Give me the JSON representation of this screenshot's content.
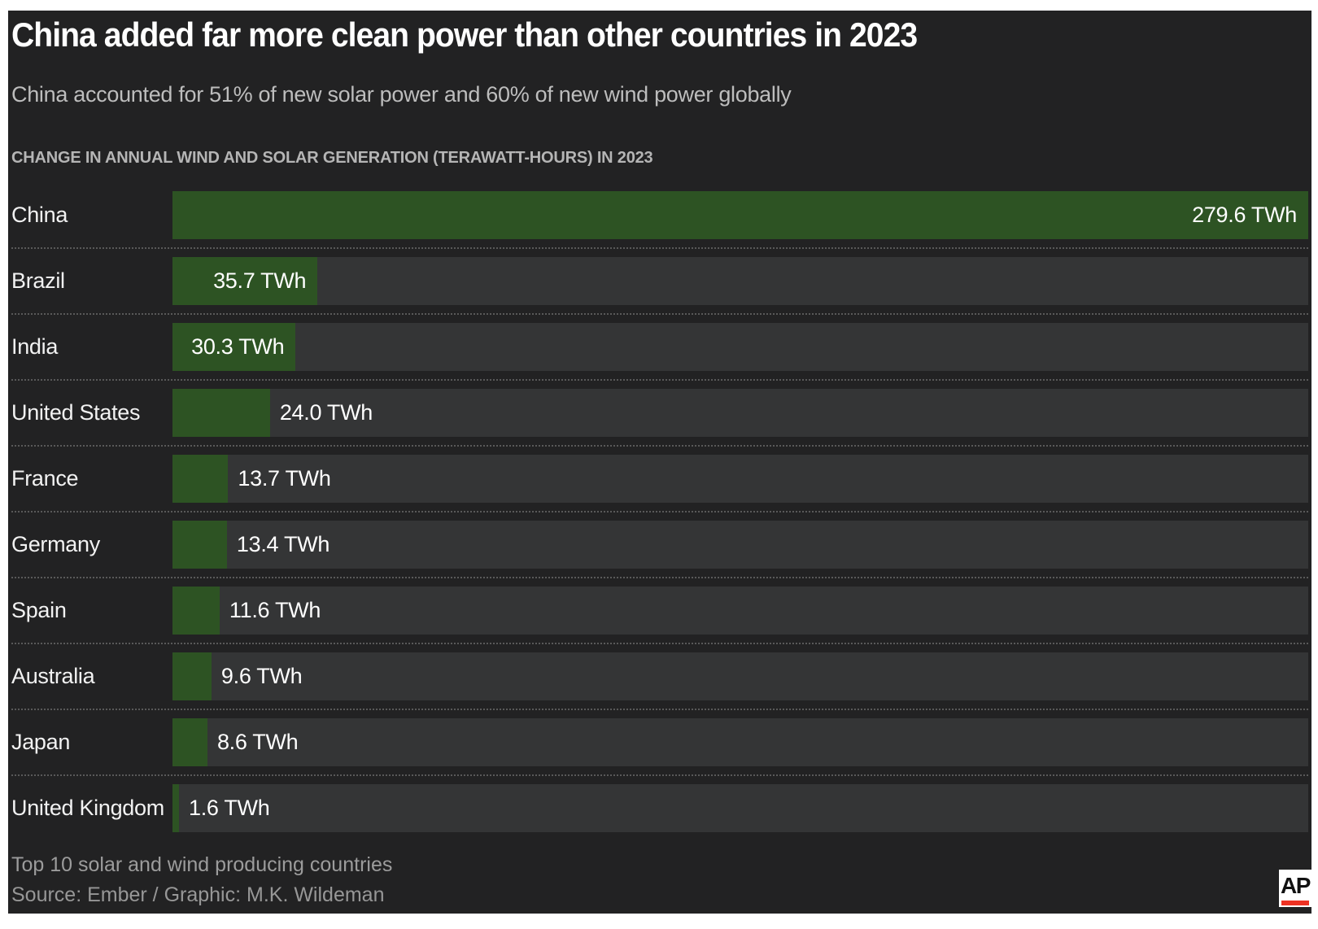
{
  "header": {
    "title": "China added far more clean power than other countries in 2023",
    "subtitle": "China accounted for 51% of new solar power and 60% of new wind power globally"
  },
  "chart_data": {
    "type": "bar",
    "orientation": "horizontal",
    "title": "CHANGE IN ANNUAL WIND AND SOLAR GENERATION (TERAWATT-HOURS) IN 2023",
    "unit": "TWh",
    "xlim": [
      0,
      279.6
    ],
    "categories": [
      "China",
      "Brazil",
      "India",
      "United States",
      "France",
      "Germany",
      "Spain",
      "Australia",
      "Japan",
      "United Kingdom"
    ],
    "values": [
      279.6,
      35.7,
      30.3,
      24.0,
      13.7,
      13.4,
      11.6,
      9.6,
      8.6,
      1.6
    ],
    "value_labels": [
      "279.6 TWh",
      "35.7 TWh",
      "30.3 TWh",
      "24.0 TWh",
      "13.7 TWh",
      "13.4 TWh",
      "11.6 TWh",
      "9.6 TWh",
      "8.6 TWh",
      "1.6 TWh"
    ],
    "inside_label_min_value": 30,
    "bar_color": "#2d5323",
    "track_color": "#343536",
    "grid": "off",
    "legend": "none"
  },
  "footer": {
    "note": "Top 10 solar and wind producing countries",
    "source": "Source: Ember / Graphic: M.K. Wildeman"
  },
  "logo": {
    "text": "AP",
    "accent_color": "#ee3224"
  },
  "colors": {
    "page_bg": "#ffffff",
    "canvas_bg": "#222223",
    "title": "#ffffff",
    "subtitle": "#bdbdbd",
    "axis_label": "#b5b5b5",
    "category_label": "#f2f2f2",
    "value_label": "#ffffff",
    "separator": "#595959",
    "note": "#9c9c9c",
    "source": "#979797"
  }
}
